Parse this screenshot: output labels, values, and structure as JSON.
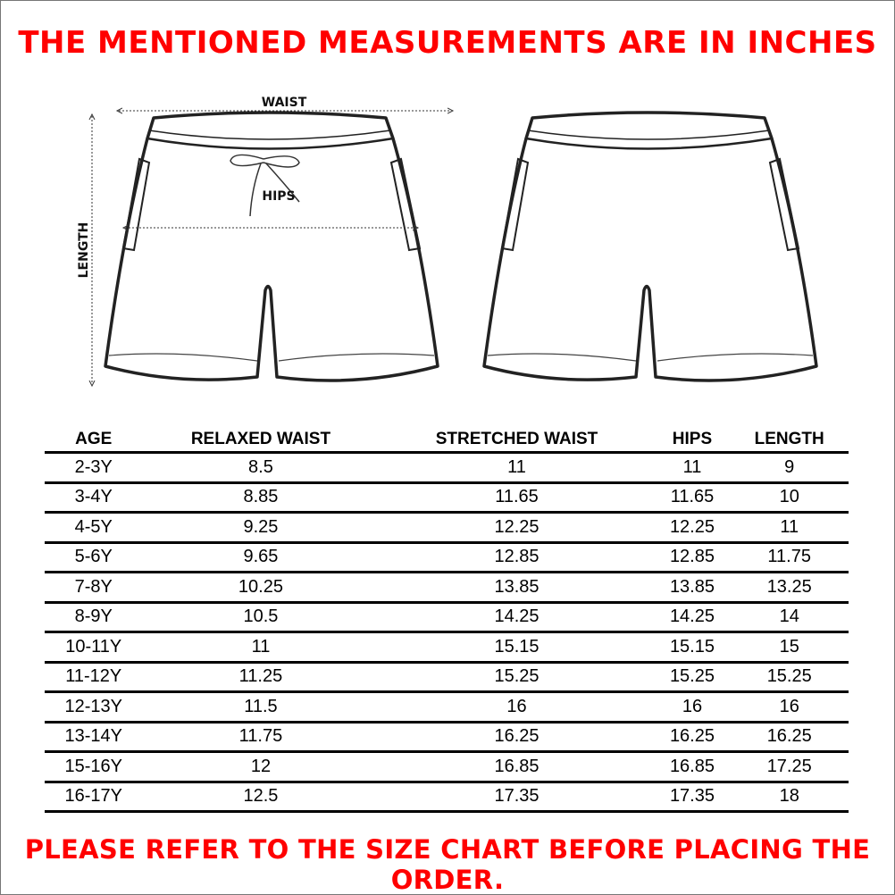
{
  "title": "THE MENTIONED MEASUREMENTS ARE IN INCHES",
  "footer_note": "PLEASE REFER TO THE SIZE CHART BEFORE PLACING THE ORDER.",
  "diagram_labels": {
    "waist": "WAIST",
    "hips": "HIPS",
    "length": "LENGTH"
  },
  "colors": {
    "accent": "#ff0000",
    "text": "#000000"
  },
  "table": {
    "headers": [
      "AGE",
      "RELAXED WAIST",
      "STRETCHED WAIST",
      "HIPS",
      "LENGTH"
    ],
    "rows": [
      [
        "2-3Y",
        "8.5",
        "11",
        "11",
        "9"
      ],
      [
        "3-4Y",
        "8.85",
        "11.65",
        "11.65",
        "10"
      ],
      [
        "4-5Y",
        "9.25",
        "12.25",
        "12.25",
        "11"
      ],
      [
        "5-6Y",
        "9.65",
        "12.85",
        "12.85",
        "11.75"
      ],
      [
        "7-8Y",
        "10.25",
        "13.85",
        "13.85",
        "13.25"
      ],
      [
        "8-9Y",
        "10.5",
        "14.25",
        "14.25",
        "14"
      ],
      [
        "10-11Y",
        "11",
        "15.15",
        "15.15",
        "15"
      ],
      [
        "11-12Y",
        "11.25",
        "15.25",
        "15.25",
        "15.25"
      ],
      [
        "12-13Y",
        "11.5",
        "16",
        "16",
        "16"
      ],
      [
        "13-14Y",
        "11.75",
        "16.25",
        "16.25",
        "16.25"
      ],
      [
        "15-16Y",
        "12",
        "16.85",
        "16.85",
        "17.25"
      ],
      [
        "16-17Y",
        "12.5",
        "17.35",
        "17.35",
        "18"
      ]
    ]
  }
}
